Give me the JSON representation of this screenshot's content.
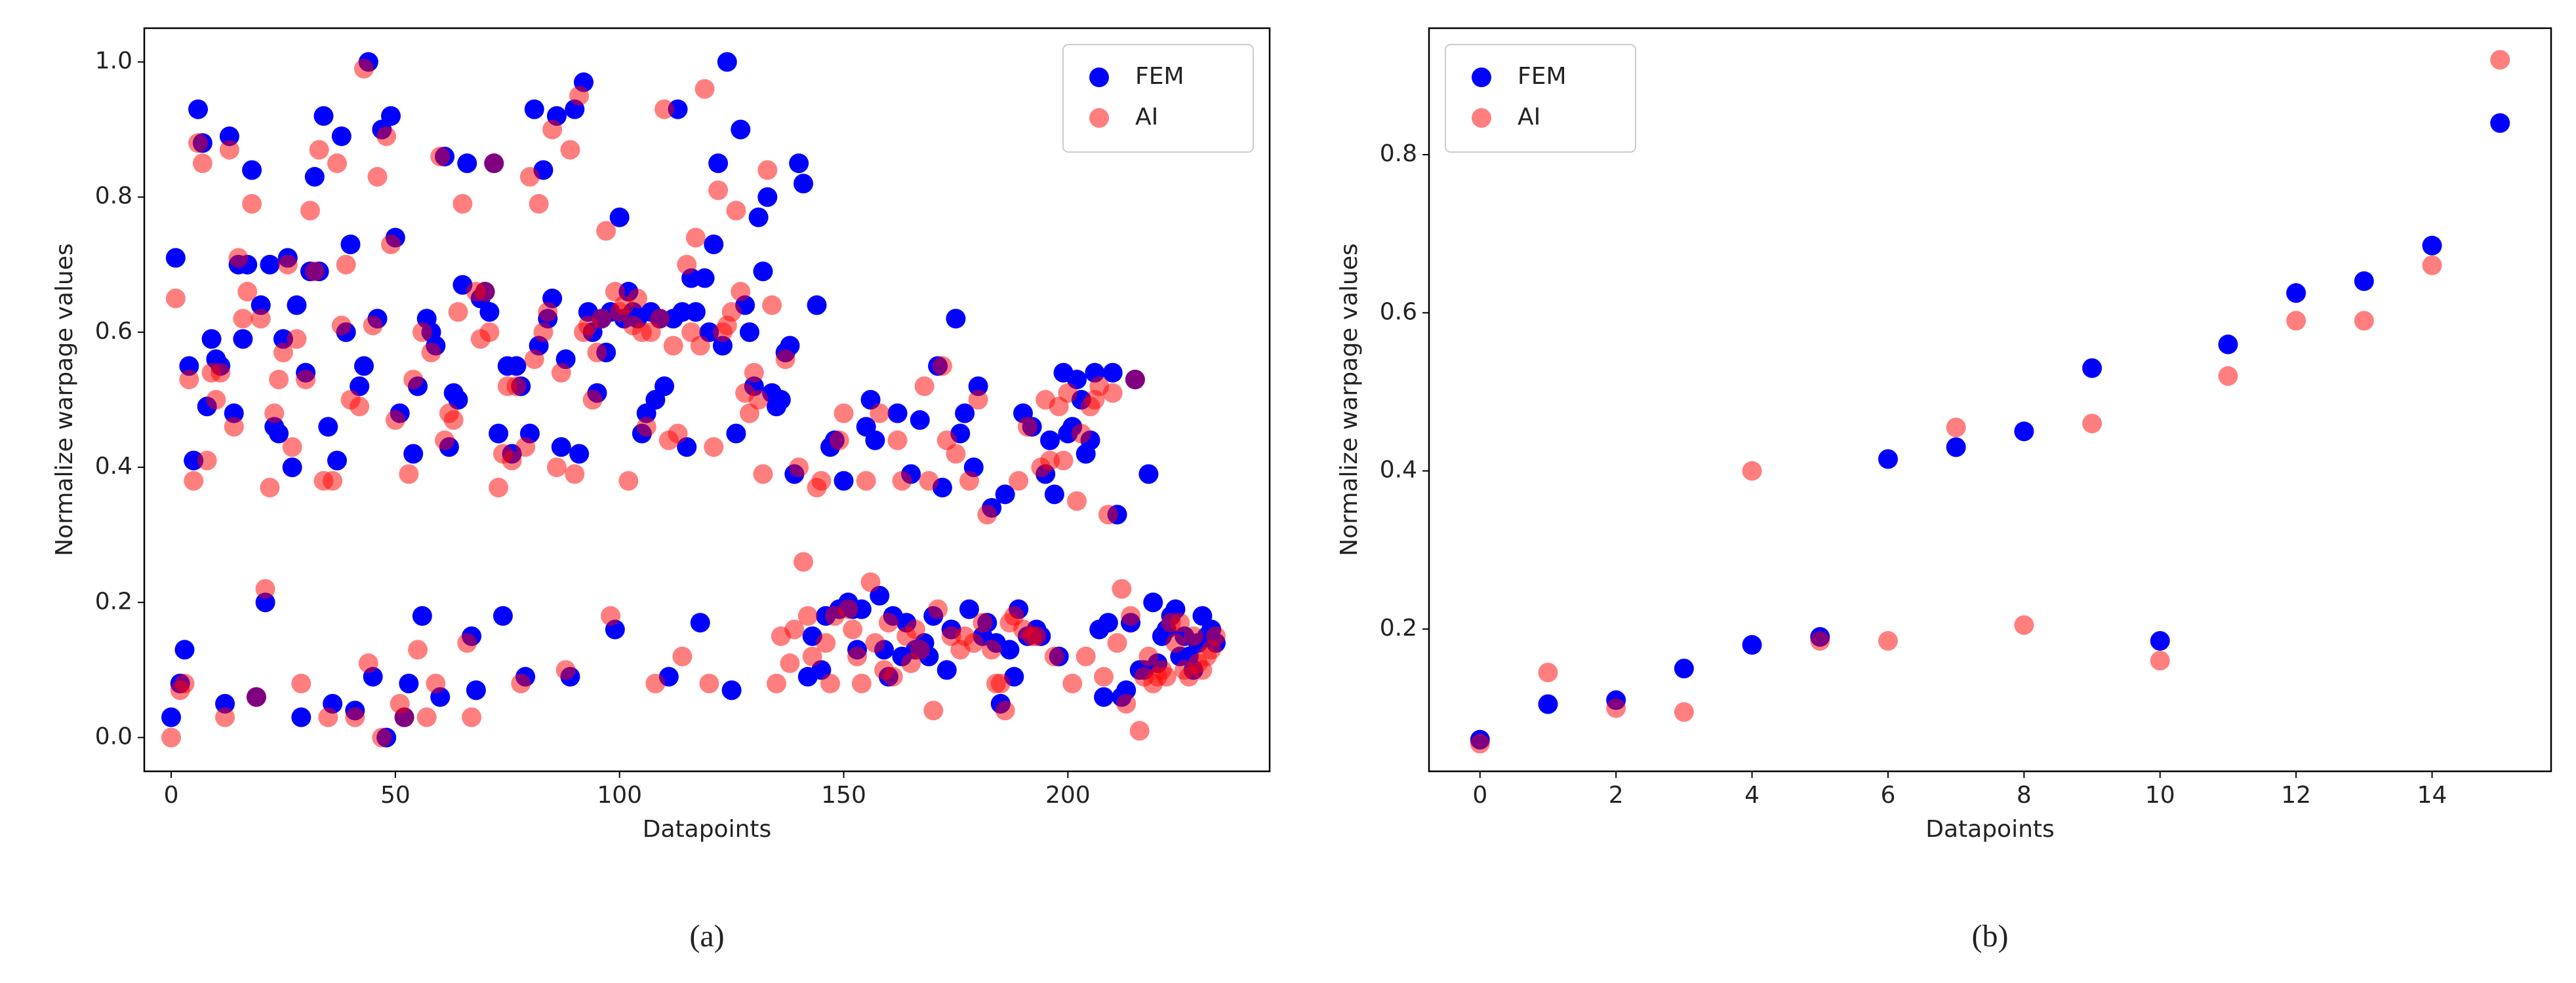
{
  "chart_data": [
    {
      "type": "scatter",
      "caption": "(a)",
      "xlabel": "Datapoints",
      "ylabel": "Normalize warpage values",
      "xlim": [
        -6,
        245
      ],
      "xticks": [
        0,
        50,
        100,
        150,
        200
      ],
      "ylim": [
        -0.05,
        1.05
      ],
      "yticks": [
        {
          "value": 0,
          "label": "0.0"
        },
        0.2,
        0.4,
        0.6,
        0.8,
        {
          "value": 1,
          "label": "1.0"
        }
      ],
      "legend": "upper right",
      "x": [
        0,
        1,
        2,
        3,
        4,
        5,
        6,
        7,
        8,
        9,
        10,
        11,
        12,
        13,
        14,
        15,
        16,
        17,
        18,
        19,
        20,
        21,
        22,
        23,
        24,
        25,
        26,
        27,
        28,
        29,
        30,
        31,
        32,
        33,
        34,
        35,
        36,
        37,
        38,
        39,
        40,
        41,
        42,
        43,
        44,
        45,
        46,
        47,
        48,
        49,
        50,
        51,
        52,
        53,
        54,
        55,
        56,
        57,
        58,
        59,
        60,
        61,
        62,
        63,
        64,
        65,
        66,
        67,
        68,
        69,
        70,
        71,
        72,
        73,
        74,
        75,
        76,
        77,
        78,
        79,
        80,
        81,
        82,
        83,
        84,
        85,
        86,
        87,
        88,
        89,
        90,
        91,
        92,
        93,
        94,
        95,
        96,
        97,
        98,
        99,
        100,
        101,
        102,
        103,
        104,
        105,
        106,
        107,
        108,
        109,
        110,
        111,
        112,
        113,
        114,
        115,
        116,
        117,
        118,
        119,
        120,
        121,
        122,
        123,
        124,
        125,
        126,
        127,
        128,
        129,
        130,
        131,
        132,
        133,
        134,
        135,
        136,
        137,
        138,
        139,
        140,
        141,
        142,
        143,
        144,
        145,
        146,
        147,
        148,
        149,
        150,
        151,
        152,
        153,
        154,
        155,
        156,
        157,
        158,
        159,
        160,
        161,
        162,
        163,
        164,
        165,
        166,
        167,
        168,
        169,
        170,
        171,
        172,
        173,
        174,
        175,
        176,
        177,
        178,
        179,
        180,
        181,
        182,
        183,
        184,
        185,
        186,
        187,
        188,
        189,
        190,
        191,
        192,
        193,
        194,
        195,
        196,
        197,
        198,
        199,
        200,
        201,
        202,
        203,
        204,
        205,
        206,
        207,
        208,
        209,
        210,
        211,
        212,
        213,
        214,
        215,
        216,
        217,
        218,
        219,
        220,
        221,
        222,
        223,
        224,
        225,
        226,
        227,
        228,
        229,
        230,
        231,
        232,
        233
      ],
      "series": [
        {
          "name": "FEM",
          "color": "#0000ff",
          "alpha": 1,
          "values": [
            0.03,
            0.71,
            0.08,
            0.13,
            0.55,
            0.41,
            0.93,
            0.88,
            0.49,
            0.59,
            0.56,
            0.55,
            0.05,
            0.89,
            0.48,
            0.7,
            0.59,
            0.7,
            0.84,
            0.06,
            0.64,
            0.2,
            0.7,
            0.46,
            0.45,
            0.59,
            0.71,
            0.4,
            0.64,
            0.03,
            0.54,
            0.69,
            0.83,
            0.69,
            0.92,
            0.46,
            0.05,
            0.41,
            0.89,
            0.6,
            0.73,
            0.04,
            0.52,
            0.55,
            1.0,
            0.09,
            0.62,
            0.9,
            0.0,
            0.92,
            0.74,
            0.48,
            0.03,
            0.08,
            0.42,
            0.52,
            0.18,
            0.62,
            0.6,
            0.58,
            0.06,
            0.86,
            0.43,
            0.51,
            0.5,
            0.67,
            0.85,
            0.15,
            0.07,
            0.65,
            0.66,
            0.63,
            0.85,
            0.45,
            0.18,
            0.55,
            0.42,
            0.55,
            0.52,
            0.09,
            0.45,
            0.93,
            0.58,
            0.84,
            0.62,
            0.65,
            0.92,
            0.43,
            0.56,
            0.09,
            0.93,
            0.42,
            0.97,
            0.63,
            0.6,
            0.51,
            0.62,
            0.57,
            0.63,
            0.16,
            0.77,
            0.62,
            0.66,
            0.63,
            0.62,
            0.45,
            0.48,
            0.63,
            0.5,
            0.62,
            0.52,
            0.09,
            0.62,
            0.93,
            0.63,
            0.43,
            0.68,
            0.63,
            0.17,
            0.68,
            0.6,
            0.73,
            0.85,
            0.58,
            1.0,
            0.07,
            0.45,
            0.9,
            0.64,
            0.6,
            0.52,
            0.77,
            0.69,
            0.8,
            0.51,
            0.49,
            0.5,
            0.57,
            0.58,
            0.39,
            0.85,
            0.82,
            0.09,
            0.15,
            0.64,
            0.1,
            0.18,
            0.43,
            0.44,
            0.19,
            0.38,
            0.2,
            0.19,
            0.13,
            0.19,
            0.46,
            0.5,
            0.44,
            0.21,
            0.13,
            0.09,
            0.18,
            0.48,
            0.12,
            0.17,
            0.39,
            0.13,
            0.47,
            0.14,
            0.12,
            0.18,
            0.55,
            0.37,
            0.1,
            0.16,
            0.62,
            0.45,
            0.48,
            0.19,
            0.4,
            0.52,
            0.15,
            0.17,
            0.34,
            0.14,
            0.05,
            0.36,
            0.13,
            0.09,
            0.19,
            0.48,
            0.15,
            0.46,
            0.16,
            0.15,
            0.39,
            0.44,
            0.36,
            0.12,
            0.54,
            0.45,
            0.46,
            0.53,
            0.5,
            0.42,
            0.44,
            0.54,
            0.16,
            0.06,
            0.17,
            0.54,
            0.33,
            0.06,
            0.07,
            0.17,
            0.53,
            0.1,
            0.1,
            0.39,
            0.2,
            0.11,
            0.15,
            0.16,
            0.18,
            0.19,
            0.12,
            0.15,
            0.12,
            0.1,
            0.14,
            0.18,
            0.15,
            0.16,
            0.14
          ]
        },
        {
          "name": "AI",
          "color": "#ff0000",
          "alpha": 0.5,
          "values": [
            0.0,
            0.65,
            0.07,
            0.08,
            0.53,
            0.38,
            0.88,
            0.85,
            0.41,
            0.54,
            0.5,
            0.54,
            0.03,
            0.87,
            0.46,
            0.71,
            0.62,
            0.66,
            0.79,
            0.06,
            0.62,
            0.22,
            0.37,
            0.48,
            0.53,
            0.57,
            0.7,
            0.43,
            0.59,
            0.08,
            0.53,
            0.78,
            0.69,
            0.87,
            0.38,
            0.03,
            0.38,
            0.85,
            0.61,
            0.7,
            0.5,
            0.03,
            0.49,
            0.99,
            0.11,
            0.61,
            0.83,
            0.0,
            0.89,
            0.73,
            0.47,
            0.05,
            0.03,
            0.39,
            0.53,
            0.13,
            0.6,
            0.03,
            0.57,
            0.08,
            0.86,
            0.44,
            0.48,
            0.47,
            0.63,
            0.79,
            0.14,
            0.03,
            0.66,
            0.59,
            0.66,
            0.6,
            0.85,
            0.37,
            0.42,
            0.52,
            0.41,
            0.52,
            0.08,
            0.43,
            0.83,
            0.56,
            0.79,
            0.6,
            0.63,
            0.9,
            0.4,
            0.54,
            0.1,
            0.87,
            0.39,
            0.95,
            0.6,
            0.61,
            0.5,
            0.57,
            0.62,
            0.75,
            0.18,
            0.66,
            0.63,
            0.64,
            0.38,
            0.61,
            0.65,
            0.6,
            0.46,
            0.6,
            0.08,
            0.62,
            0.93,
            0.44,
            0.58,
            0.45,
            0.12,
            0.7,
            0.6,
            0.74,
            0.58,
            0.96,
            0.08,
            0.43,
            0.81,
            0.6,
            0.61,
            0.63,
            0.78,
            0.66,
            0.51,
            0.48,
            0.54,
            0.5,
            0.39,
            0.84,
            0.64,
            0.08,
            0.15,
            0.56,
            0.11,
            0.16,
            0.4,
            0.26,
            0.18,
            0.12,
            0.37,
            0.38,
            0.14,
            0.08,
            0.18,
            0.44,
            0.48,
            0.19,
            0.16,
            0.12,
            0.08,
            0.38,
            0.23,
            0.14,
            0.48,
            0.1,
            0.17,
            0.09,
            0.44,
            0.38,
            0.15,
            0.11,
            0.16,
            0.13,
            0.52,
            0.38,
            0.04,
            0.19,
            0.55,
            0.44,
            0.15,
            0.42,
            0.13,
            0.15,
            0.38,
            0.14,
            0.5,
            0.17,
            0.33,
            0.13,
            0.08,
            0.08,
            0.04,
            0.17,
            0.18,
            0.38,
            0.16,
            0.46,
            0.15,
            0.15,
            0.4,
            0.5,
            0.41,
            0.12,
            0.49,
            0.41,
            0.51,
            0.08,
            0.35,
            0.45,
            0.12,
            0.49,
            0.5,
            0.52,
            0.09,
            0.33,
            0.51,
            0.14,
            0.22,
            0.05,
            0.18,
            0.53,
            0.01,
            0.09,
            0.12,
            0.08,
            0.09,
            0.1,
            0.09,
            0.17,
            0.14,
            0.17,
            0.1,
            0.09,
            0.15,
            0.11,
            0.1,
            0.12,
            0.13,
            0.15
          ]
        }
      ]
    },
    {
      "type": "scatter",
      "caption": "(b)",
      "xlabel": "Datapoints",
      "ylabel": "Normalize warpage values",
      "xlim": [
        -0.75,
        15.75
      ],
      "xticks": [
        0,
        2,
        4,
        6,
        8,
        10,
        12,
        14
      ],
      "ylim": [
        0.02,
        0.96
      ],
      "yticks": [
        0.2,
        0.4,
        0.6,
        0.8
      ],
      "legend": "upper left",
      "x": [
        0,
        1,
        2,
        3,
        4,
        5,
        6,
        7,
        8,
        9,
        10,
        11,
        12,
        13,
        14,
        15
      ],
      "series": [
        {
          "name": "FEM",
          "color": "#0000ff",
          "alpha": 1,
          "values": [
            0.06,
            0.105,
            0.11,
            0.15,
            0.18,
            0.19,
            0.415,
            0.43,
            0.45,
            0.53,
            0.185,
            0.56,
            0.625,
            0.64,
            0.685,
            0.84
          ]
        },
        {
          "name": "AI",
          "color": "#ff0000",
          "alpha": 0.5,
          "values": [
            0.055,
            0.145,
            0.1,
            0.095,
            0.4,
            0.185,
            0.185,
            0.455,
            0.205,
            0.46,
            0.16,
            0.52,
            0.59,
            0.59,
            0.66,
            0.92
          ]
        }
      ]
    }
  ]
}
